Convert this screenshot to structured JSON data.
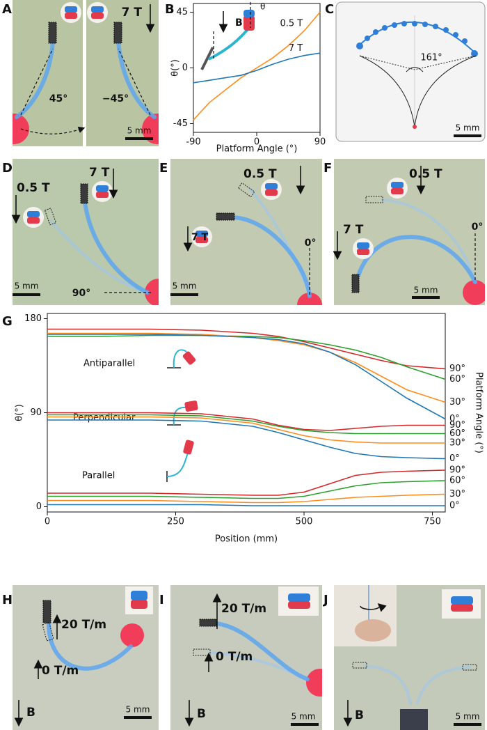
{
  "panel_labels": [
    "A",
    "B",
    "C",
    "D",
    "E",
    "F",
    "G",
    "H",
    "I",
    "J"
  ],
  "panel_a": {
    "field": "7 T",
    "angles": [
      "45°",
      "−45°"
    ],
    "scale": "5 mm"
  },
  "panel_b": {
    "field": "B",
    "angle": "θ"
  },
  "panel_c": {
    "angle": "161°",
    "scale": "5 mm"
  },
  "panel_d": {
    "fields": [
      "0.5 T",
      "7 T"
    ],
    "angle": "90°",
    "scale": "5 mm"
  },
  "panel_e": {
    "fields": [
      "0.5 T",
      "7 T"
    ],
    "angle": "0°",
    "scale": "5 mm"
  },
  "panel_f": {
    "fields": [
      "0.5 T",
      "7 T"
    ],
    "angle": "0°",
    "scale": "5 mm"
  },
  "panel_h": {
    "gradients": [
      "20 T/m",
      "0 T/m"
    ],
    "field": "B",
    "scale": "5 mm"
  },
  "panel_i": {
    "gradients": [
      "20 T/m",
      "0 T/m"
    ],
    "field": "B",
    "scale": "5 mm"
  },
  "panel_j": {
    "field": "B",
    "scale": "5 mm"
  },
  "chart_data": [
    {
      "type": "line",
      "x_label": "Platform Angle (°)",
      "y_label": "θ(°)",
      "x": [
        -90,
        -67.5,
        -45,
        -22.5,
        0,
        22.5,
        45,
        67.5,
        90
      ],
      "xlim": [
        -90,
        90
      ],
      "xticks": [
        -90,
        0,
        90
      ],
      "ylim": [
        -52,
        52
      ],
      "yticks": [
        -45,
        0,
        45
      ],
      "series": [
        {
          "name": "0.5 T",
          "color": "#ff8c1a",
          "values": [
            -42,
            -28,
            -18,
            -8,
            0,
            8,
            18,
            30,
            45
          ]
        },
        {
          "name": "7 T",
          "color": "#1f77b4",
          "values": [
            -12,
            -10,
            -8,
            -6,
            -2,
            3,
            7,
            10,
            12
          ]
        }
      ]
    },
    {
      "type": "line",
      "x_label": "Position (mm)",
      "y_label": "θ(°)",
      "y2_label": "Platform Angle (°)",
      "annotations": [
        "Antiparallel",
        "Perpendicular",
        "Parallel"
      ],
      "x": [
        0,
        100,
        200,
        300,
        400,
        450,
        500,
        550,
        600,
        650,
        700,
        775
      ],
      "xlim": [
        0,
        775
      ],
      "xticks": [
        0,
        250,
        500,
        750
      ],
      "ylim": [
        -5,
        185
      ],
      "yticks": [
        0,
        90,
        180
      ],
      "series": [
        {
          "name": "90°",
          "color": "#d62728",
          "values": [
            170,
            170,
            170,
            169,
            166,
            163,
            158,
            152,
            146,
            140,
            135,
            132
          ]
        },
        {
          "name": "60°",
          "color": "#2ca02c",
          "values": [
            163,
            163,
            164,
            164,
            163,
            162,
            159,
            155,
            150,
            143,
            134,
            122
          ]
        },
        {
          "name": "30°",
          "color": "#ff8c1a",
          "values": [
            166,
            166,
            166,
            165,
            162,
            159,
            155,
            148,
            138,
            125,
            112,
            100
          ]
        },
        {
          "name": "0°",
          "color": "#1f77b4",
          "values": [
            165,
            165,
            165,
            164,
            162,
            160,
            156,
            148,
            136,
            120,
            104,
            84
          ]
        },
        {
          "name": "90°",
          "color": "#d62728",
          "values": [
            90,
            90,
            90,
            89,
            84,
            78,
            74,
            73,
            75,
            77,
            78,
            78
          ]
        },
        {
          "name": "60°",
          "color": "#2ca02c",
          "values": [
            88,
            88,
            88,
            87,
            82,
            77,
            73,
            71,
            70,
            70,
            70,
            70
          ]
        },
        {
          "name": "30°",
          "color": "#ff8c1a",
          "values": [
            86,
            86,
            86,
            85,
            80,
            74,
            68,
            64,
            62,
            61,
            61,
            61
          ]
        },
        {
          "name": "0°",
          "color": "#1f77b4",
          "values": [
            83,
            83,
            83,
            82,
            77,
            71,
            64,
            57,
            51,
            48,
            47,
            46
          ]
        },
        {
          "name": "90°",
          "color": "#d62728",
          "values": [
            13,
            13,
            13,
            12,
            11,
            11,
            14,
            22,
            30,
            33,
            34,
            35
          ]
        },
        {
          "name": "60°",
          "color": "#2ca02c",
          "values": [
            10,
            10,
            10,
            9,
            8,
            8,
            10,
            15,
            20,
            23,
            24,
            25
          ]
        },
        {
          "name": "30°",
          "color": "#ff8c1a",
          "values": [
            6,
            6,
            6,
            5,
            4,
            4,
            5,
            7,
            9,
            10,
            11,
            12
          ]
        },
        {
          "name": "0°",
          "color": "#1f77b4",
          "values": [
            2,
            2,
            2,
            2,
            1,
            1,
            1,
            1,
            1,
            1,
            1,
            1
          ]
        }
      ]
    }
  ]
}
